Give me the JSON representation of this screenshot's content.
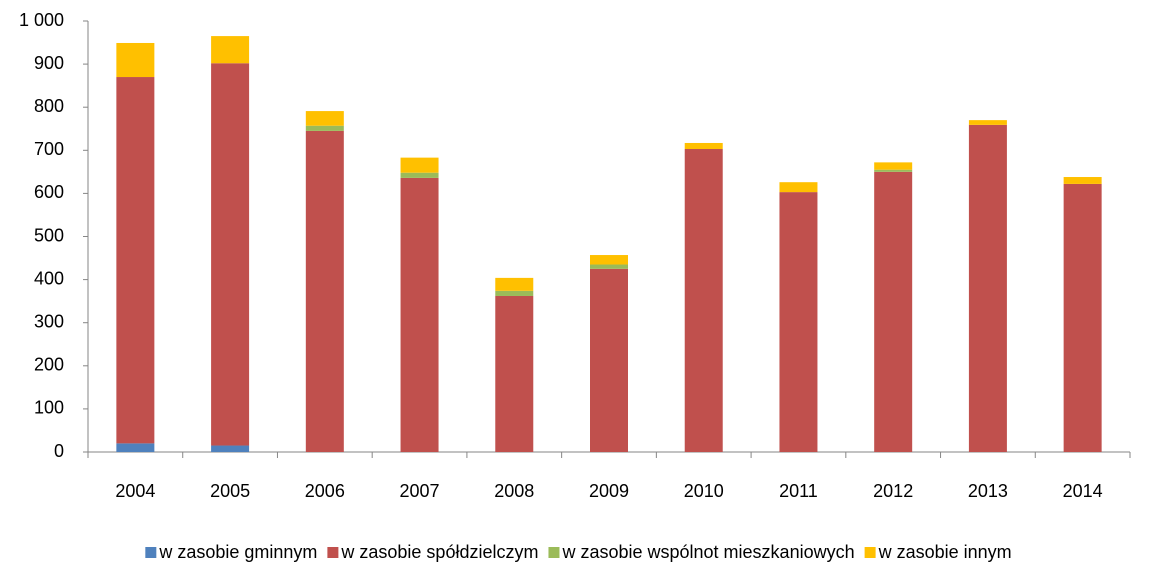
{
  "chart_data": {
    "type": "stacked_bar",
    "categories": [
      "2004",
      "2005",
      "2006",
      "2007",
      "2008",
      "2009",
      "2010",
      "2011",
      "2012",
      "2013",
      "2014"
    ],
    "series": [
      {
        "name": "w zasobie gminnym",
        "color": "#4f81bd",
        "values": [
          20,
          15,
          0,
          0,
          0,
          0,
          0,
          0,
          0,
          0,
          0
        ]
      },
      {
        "name": "w zasobie spółdzielczym",
        "color": "#c0504d",
        "values": [
          850,
          887,
          745,
          636,
          362,
          425,
          703,
          603,
          650,
          759,
          622
        ]
      },
      {
        "name": "w zasobie wspólnot mieszkaniowych",
        "color": "#9bbb59",
        "values": [
          0,
          0,
          12,
          12,
          12,
          10,
          0,
          0,
          5,
          0,
          0
        ]
      },
      {
        "name": "w zasobie innym",
        "color": "#ffc000",
        "values": [
          79,
          63,
          34,
          35,
          30,
          22,
          14,
          23,
          17,
          11,
          16
        ]
      }
    ],
    "ylim": [
      0,
      1000
    ],
    "yticks": [
      0,
      100,
      200,
      300,
      400,
      500,
      600,
      700,
      800,
      900,
      {
        "value": 1000,
        "label": "1 000"
      }
    ],
    "grid": false,
    "legend": "bottom"
  }
}
